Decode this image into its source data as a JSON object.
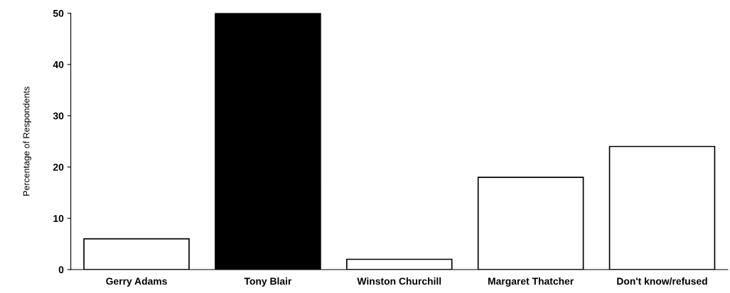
{
  "chart_data": {
    "type": "bar",
    "ylabel": "Percentage of Respondents",
    "categories": [
      "Gerry Adams",
      "Tony Blair",
      "Winston Churchill",
      "Margaret Thatcher",
      "Don't know/refused"
    ],
    "values": [
      6,
      50,
      2,
      18,
      24
    ],
    "colors": [
      "#ffffff",
      "#000000",
      "#ffffff",
      "#ffffff",
      "#ffffff"
    ],
    "ylim": [
      0,
      50
    ],
    "yticks": [
      0,
      10,
      20,
      30,
      40,
      50
    ],
    "grid": false,
    "legend": false
  }
}
